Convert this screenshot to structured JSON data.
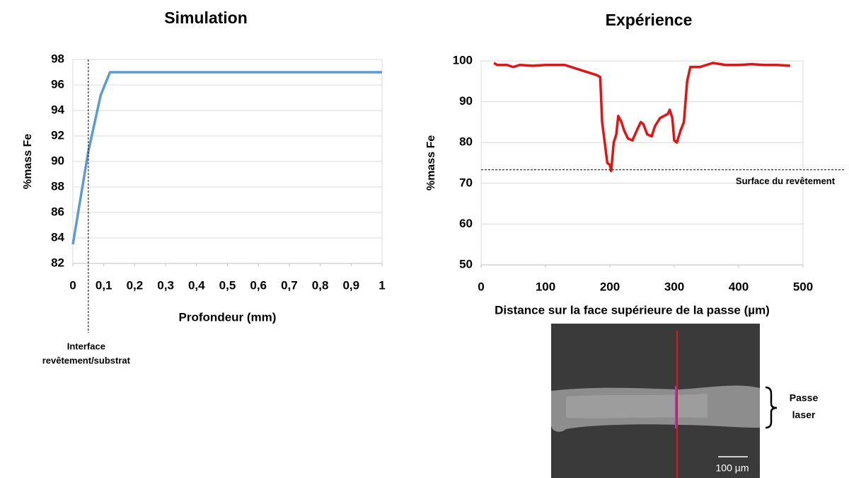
{
  "chart_data": [
    {
      "type": "line",
      "title": "Simulation",
      "x_label": "Profondeur (mm)",
      "y_label": "%mass Fe",
      "x": [
        0,
        0.05,
        0.09,
        0.12,
        1
      ],
      "values": [
        83.5,
        90.8,
        95.2,
        97,
        97
      ],
      "color": "#5b9bd5",
      "xlim": [
        0,
        1
      ],
      "xticks": [
        0,
        {
          "value": 0.1,
          "label": "0,1"
        },
        {
          "value": 0.2,
          "label": "0,2"
        },
        {
          "value": 0.3,
          "label": "0,3"
        },
        {
          "value": 0.4,
          "label": "0,4"
        },
        {
          "value": 0.5,
          "label": "0,5"
        },
        {
          "value": 0.6,
          "label": "0,6"
        },
        {
          "value": 0.7,
          "label": "0,7"
        },
        {
          "value": 0.8,
          "label": "0,8"
        },
        {
          "value": 0.9,
          "label": "0,9"
        },
        1
      ],
      "ylim": [
        82,
        98
      ],
      "yticks": [
        82,
        84,
        86,
        88,
        90,
        92,
        94,
        96,
        98
      ],
      "grid": true,
      "vline": {
        "x": 0.05,
        "label": [
          "Interface",
          "revêtement/substrat"
        ]
      }
    },
    {
      "type": "line",
      "title": "Expérience",
      "x_label": "Distance sur la face supérieure de la passe (µm)",
      "y_label": "%mass Fe",
      "x": [
        20,
        25,
        40,
        50,
        60,
        80,
        100,
        130,
        140,
        160,
        180,
        185,
        188,
        192,
        196,
        200,
        202,
        206,
        210,
        213,
        218,
        222,
        228,
        235,
        242,
        248,
        252,
        258,
        265,
        270,
        278,
        290,
        293,
        297,
        300,
        304,
        310,
        315,
        320,
        325,
        340,
        360,
        380,
        400,
        420,
        440,
        460,
        480
      ],
      "values": [
        99.5,
        99,
        99,
        98.5,
        99,
        98.8,
        99,
        99,
        98.5,
        97.5,
        96.5,
        96,
        85,
        80,
        75,
        74.5,
        73,
        80,
        82,
        86.5,
        85,
        83,
        81,
        80.5,
        83,
        85,
        84.5,
        82,
        81.5,
        84,
        86,
        87,
        88,
        86,
        80.5,
        80,
        83,
        85,
        95,
        98.5,
        98.5,
        99.5,
        99,
        99,
        99.2,
        99,
        99,
        98.8
      ],
      "color": "#e81010",
      "xlim": [
        0,
        500
      ],
      "xticks": [
        0,
        100,
        200,
        300,
        400,
        500
      ],
      "ylim": [
        50,
        100
      ],
      "yticks": [
        50,
        60,
        70,
        80,
        90,
        100
      ],
      "grid": true,
      "hline": {
        "y": 73.3,
        "label": "Surface du revêtement"
      },
      "inset": {
        "scale_label": "100 µm",
        "bracket_label": [
          "Passe",
          "laser"
        ]
      }
    }
  ]
}
